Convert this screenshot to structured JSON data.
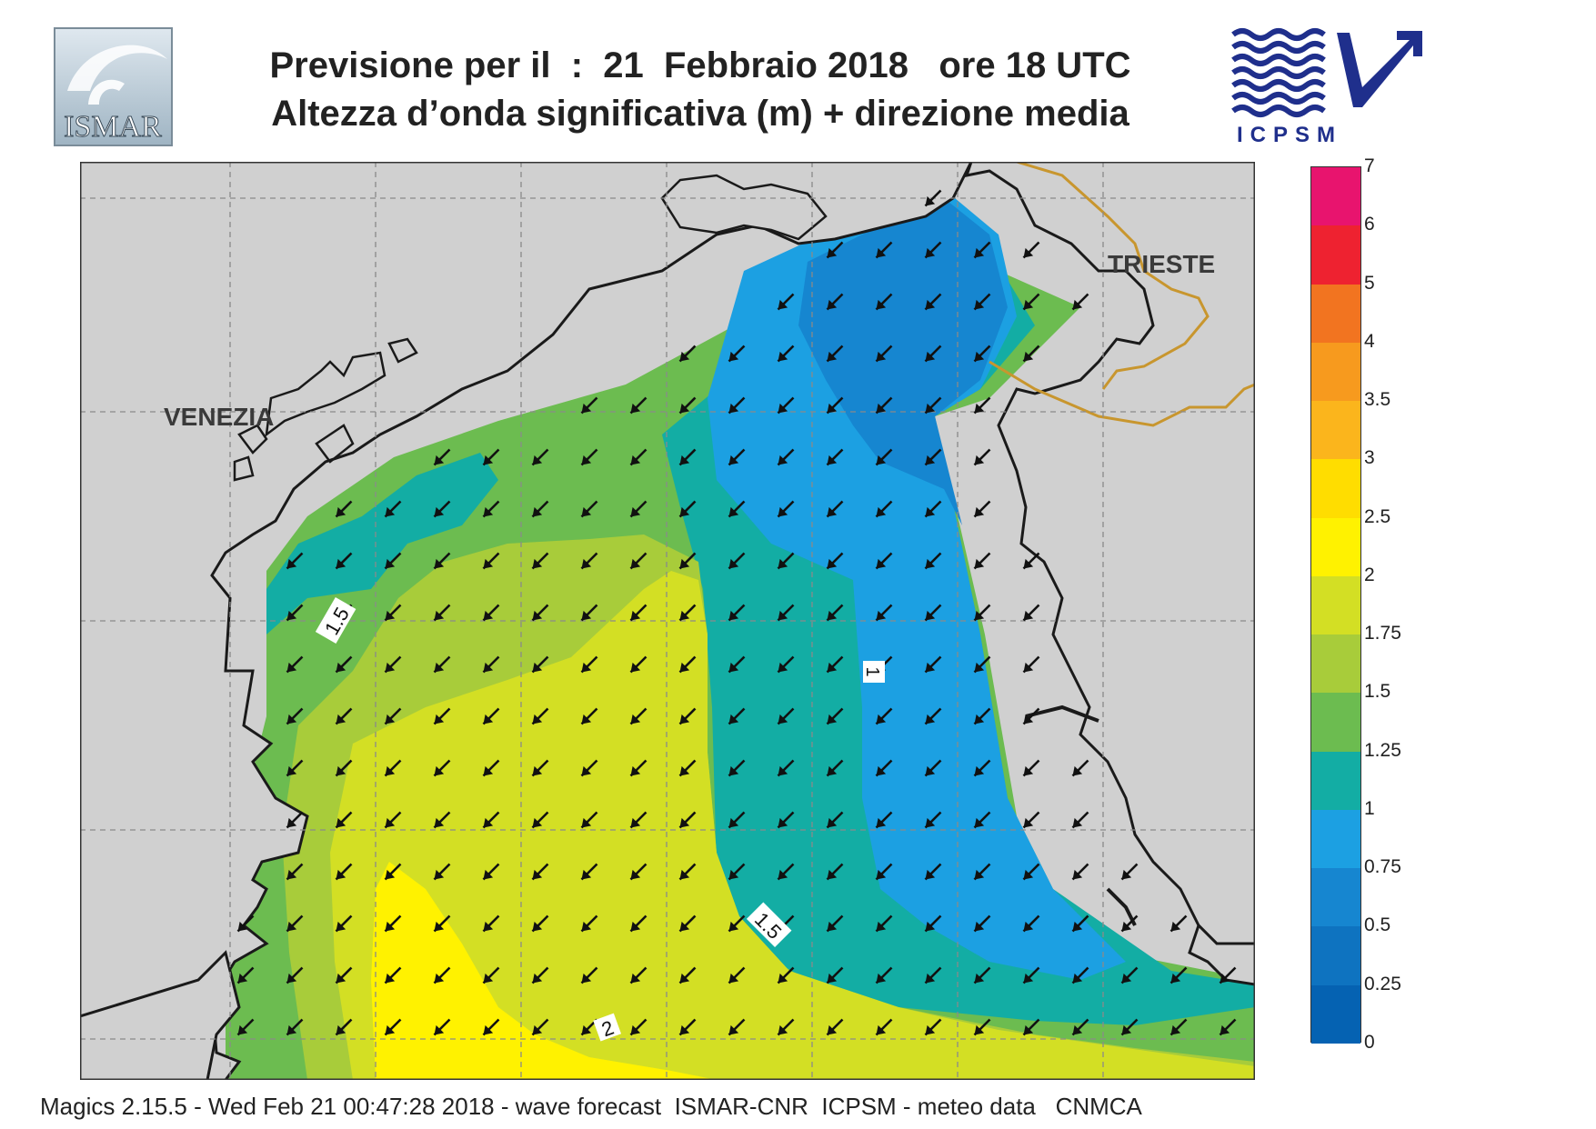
{
  "header": {
    "title_line1": "Previsione per il  :  21  Febbraio 2018   ore 18 UTC",
    "title_line2": "Altezza d’onda significativa (m) + direzione media"
  },
  "logos": {
    "ismar": "ISMAR",
    "icpsm": "ICPSM"
  },
  "map": {
    "cities": [
      "VENEZIA",
      "TRIESTE"
    ],
    "contour_labels": [
      "1.5",
      "1",
      "1.5",
      "2"
    ],
    "arrow_direction": "south-west",
    "land_color": "#d0d0d0",
    "border_color": "#c8962e",
    "coast_color": "#1a1a1a"
  },
  "colorbar": {
    "tick_labels": [
      "7",
      "6",
      "5",
      "4",
      "3.5",
      "3",
      "2.5",
      "2",
      "1.75",
      "1.5",
      "1.25",
      "1",
      "0.75",
      "0.5",
      "0.25",
      "0"
    ],
    "colors": [
      "#e8146e",
      "#ee2230",
      "#f27420",
      "#f79a1e",
      "#fbb51c",
      "#ffdd00",
      "#fff200",
      "#d3df24",
      "#a8cc3a",
      "#6cbc50",
      "#13ada4",
      "#1ca0e2",
      "#1686d0",
      "#0e73c0",
      "#0562b2"
    ]
  },
  "footer": {
    "text": "Magics 2.15.5 - Wed Feb 21 00:47:28 2018 - wave forecast  ISMAR-CNR  ICPSM - meteo data   CNMCA"
  }
}
